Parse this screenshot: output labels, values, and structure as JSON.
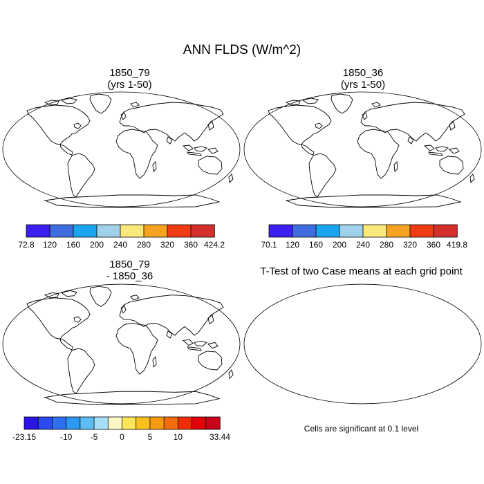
{
  "title": "ANN FLDS (W/m^2)",
  "panels": [
    {
      "id": "p1",
      "title_line1": "1850_79",
      "title_line2": "(yrs 1-50)",
      "kind": "field"
    },
    {
      "id": "p2",
      "title_line1": "1850_36",
      "title_line2": "(yrs 1-50)",
      "kind": "field"
    },
    {
      "id": "p3",
      "title_line1": "1850_79",
      "title_line2": "- 1850_36",
      "kind": "diff"
    },
    {
      "id": "p4",
      "title_line1": "T-Test of two Case means at each grid point",
      "title_line2": "",
      "kind": "ttest"
    }
  ],
  "colorbars": {
    "field_1": {
      "colors": [
        "#3a1fef",
        "#3f6de0",
        "#19a6ef",
        "#9fd2ea",
        "#fbe87a",
        "#f6a321",
        "#f03b14",
        "#d3302b"
      ],
      "ticks": [
        "72.8",
        "120",
        "160",
        "200",
        "240",
        "280",
        "320",
        "360",
        "424.2"
      ]
    },
    "field_2": {
      "colors": [
        "#3a1fef",
        "#3f6de0",
        "#19a6ef",
        "#9fd2ea",
        "#fbe87a",
        "#f6a321",
        "#f03b14",
        "#d3302b"
      ],
      "ticks": [
        "70.1",
        "120",
        "160",
        "200",
        "240",
        "280",
        "320",
        "360",
        "419.8"
      ]
    },
    "diff": {
      "colors": [
        "#2c14e6",
        "#2a49f0",
        "#2f6ff2",
        "#2c98f2",
        "#5cbdf4",
        "#a8dff8",
        "#fdf7c6",
        "#fde65a",
        "#fbc21f",
        "#f89a10",
        "#f56c0c",
        "#ee2d08",
        "#e20008",
        "#c8001c"
      ],
      "ticks": [
        {
          "label": "-23.15",
          "edge": 0
        },
        {
          "label": "-10",
          "edge": 3
        },
        {
          "label": "-5",
          "edge": 5
        },
        {
          "label": "0",
          "edge": 7
        },
        {
          "label": "5",
          "edge": 9
        },
        {
          "label": "10",
          "edge": 11
        },
        {
          "label": "33.44",
          "edge": 14
        }
      ]
    }
  },
  "ttest_color": "#f00000",
  "note": "Cells are significant at 0.1 level"
}
